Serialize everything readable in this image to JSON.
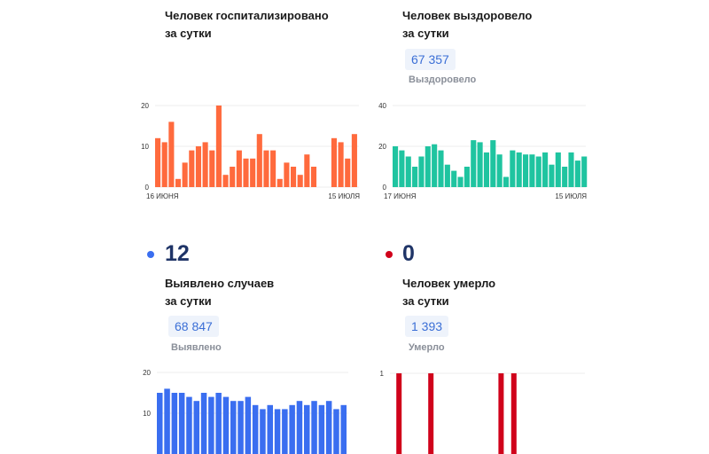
{
  "cards": {
    "hospitalized": {
      "title_line1": "Человек госпитализировано",
      "title_line2": "за сутки"
    },
    "recovered": {
      "title_line1": "Человек выздоровело",
      "title_line2": "за сутки",
      "total": "67 357",
      "total_label": "Выздоровело"
    },
    "cases": {
      "daily": "12",
      "dot_color": "#3a6ef0",
      "title_line1": "Выявлено случаев",
      "title_line2": "за сутки",
      "total": "68 847",
      "total_label": "Выявлено"
    },
    "deaths": {
      "daily": "0",
      "dot_color": "#d0021b",
      "title_line1": "Человек умерло",
      "title_line2": "за сутки",
      "total": "1 393",
      "total_label": "Умерло"
    }
  },
  "chart_data": [
    {
      "id": "hospitalized",
      "type": "bar",
      "color": "#ff6a3d",
      "ylim": [
        0,
        20
      ],
      "yticks": [
        0,
        10,
        20
      ],
      "x_start_label": "16 июня",
      "x_end_label": "15 июля",
      "values": [
        12,
        11,
        16,
        2,
        6,
        9,
        10,
        11,
        9,
        20,
        3,
        5,
        9,
        7,
        7,
        13,
        9,
        9,
        2,
        6,
        5,
        3,
        8,
        5,
        null,
        null,
        12,
        11,
        7,
        13
      ]
    },
    {
      "id": "recovered",
      "type": "bar",
      "color": "#1fc4a0",
      "ylim": [
        0,
        40
      ],
      "yticks": [
        0,
        20,
        40
      ],
      "x_start_label": "17 июня",
      "x_end_label": "15 июля",
      "values": [
        20,
        18,
        15,
        10,
        15,
        20,
        21,
        18,
        11,
        8,
        5,
        10,
        23,
        22,
        17,
        23,
        16,
        5,
        18,
        17,
        16,
        16,
        15,
        17,
        11,
        17,
        10,
        17,
        13,
        15
      ]
    },
    {
      "id": "cases",
      "type": "bar",
      "color": "#3a6ef0",
      "ylim": [
        0,
        20
      ],
      "yticks": [
        10,
        20
      ],
      "values": [
        15,
        16,
        15,
        15,
        14,
        13,
        15,
        14,
        15,
        14,
        13,
        13,
        14,
        12,
        11,
        12,
        11,
        11,
        12,
        13,
        12,
        13,
        12,
        13,
        11,
        12
      ]
    },
    {
      "id": "deaths",
      "type": "bar",
      "color": "#d0021b",
      "ylim": [
        0,
        1
      ],
      "yticks": [
        1
      ],
      "values": [
        0,
        1,
        0,
        0,
        0,
        0,
        1,
        0,
        0,
        0,
        0,
        0,
        0,
        0,
        0,
        0,
        0,
        1,
        0,
        1,
        0,
        0,
        0,
        0,
        0,
        0,
        0,
        0,
        0,
        0
      ]
    }
  ]
}
